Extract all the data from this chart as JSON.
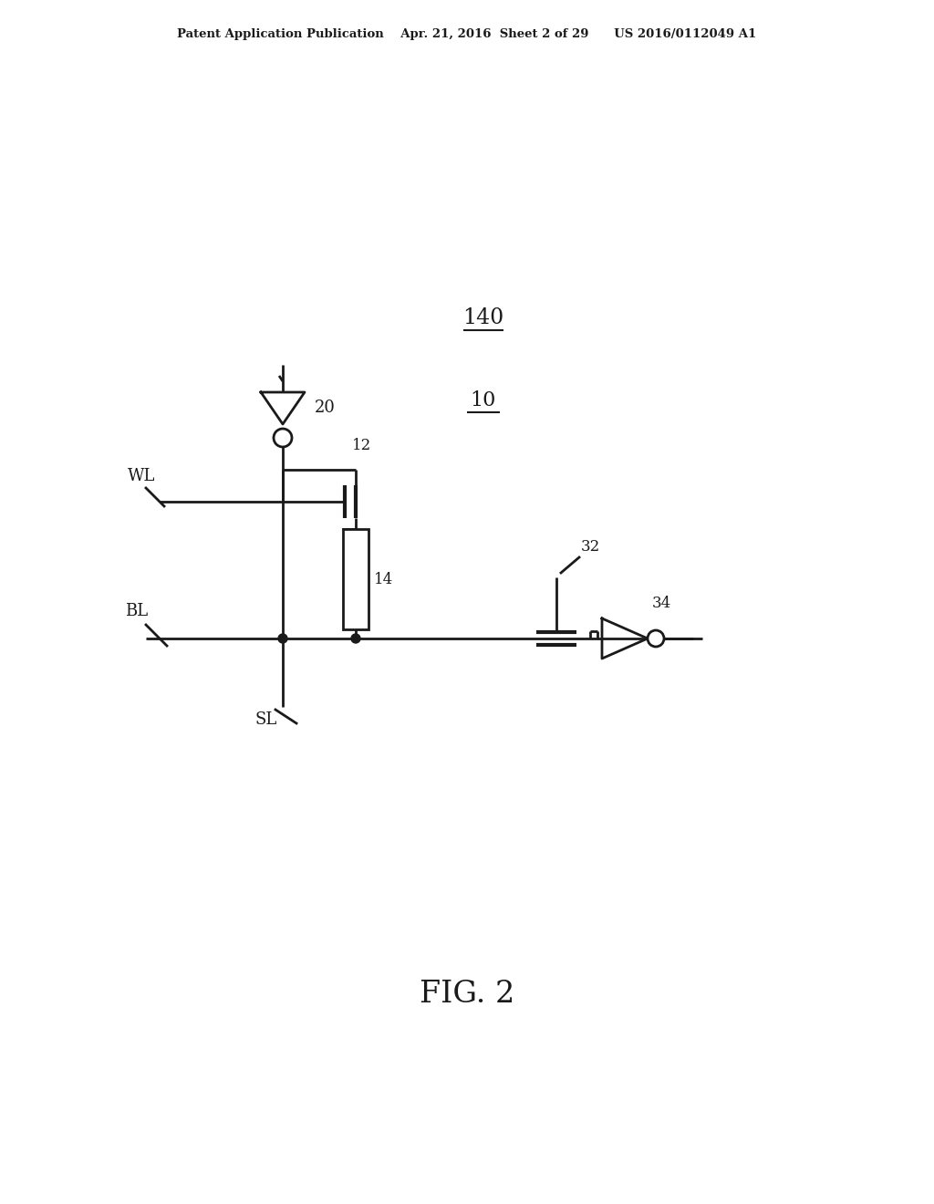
{
  "bg_color": "#ffffff",
  "line_color": "#1a1a1a",
  "text_color": "#1a1a1a",
  "header_text": "Patent Application Publication    Apr. 21, 2016  Sheet 2 of 29      US 2016/0112049 A1",
  "label_140": "140",
  "label_10": "10",
  "label_20": "20",
  "label_12": "12",
  "label_14": "14",
  "label_32": "32",
  "label_34": "34",
  "label_WL": "WL",
  "label_BL": "BL",
  "label_SL": "SL",
  "fig_label": "FIG. 2",
  "lw": 2.0,
  "lw_thick": 3.0
}
